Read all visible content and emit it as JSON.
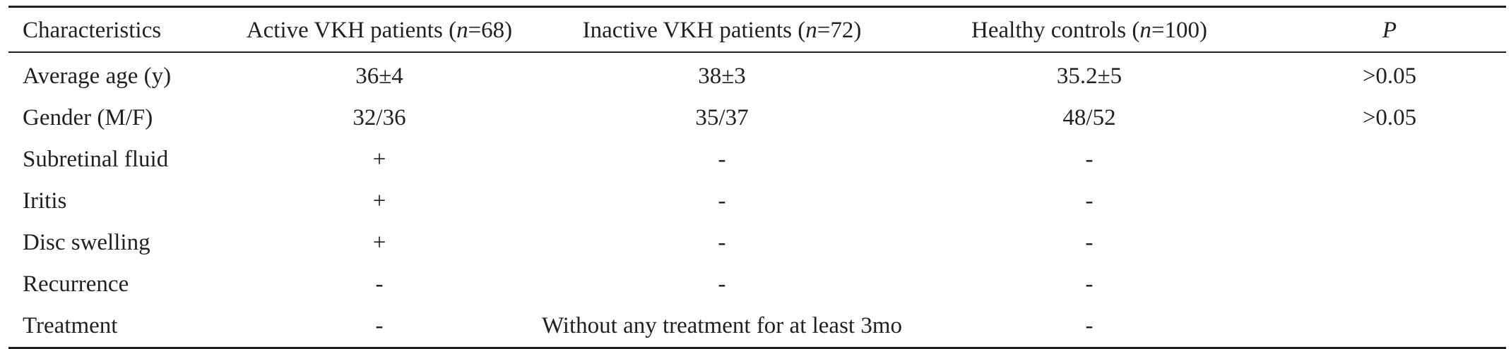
{
  "table": {
    "header": {
      "characteristics": "Characteristics",
      "active": {
        "prefix": "Active VKH patients (",
        "n": "n",
        "suffix": "=68)"
      },
      "inactive": {
        "prefix": "Inactive VKH patients (",
        "n": "n",
        "suffix": "=72)"
      },
      "healthy": {
        "prefix": "Healthy controls (",
        "n": "n",
        "suffix": "=100)"
      },
      "p": "P"
    },
    "rows": [
      {
        "label": "Average age (y)",
        "active": "36±4",
        "inactive": "38±3",
        "healthy": "35.2±5",
        "p": ">0.05"
      },
      {
        "label": "Gender (M/F)",
        "active": "32/36",
        "inactive": "35/37",
        "healthy": "48/52",
        "p": ">0.05"
      },
      {
        "label": "Subretinal fluid",
        "active": "+",
        "inactive": "-",
        "healthy": "-",
        "p": ""
      },
      {
        "label": "Iritis",
        "active": "+",
        "inactive": "-",
        "healthy": "-",
        "p": ""
      },
      {
        "label": "Disc swelling",
        "active": "+",
        "inactive": "-",
        "healthy": "-",
        "p": ""
      },
      {
        "label": "Recurrence",
        "active": "-",
        "inactive": "-",
        "healthy": "-",
        "p": ""
      },
      {
        "label": "Treatment",
        "active": "-",
        "inactive": "Without any treatment for at least 3mo",
        "healthy": "-",
        "p": ""
      }
    ]
  }
}
